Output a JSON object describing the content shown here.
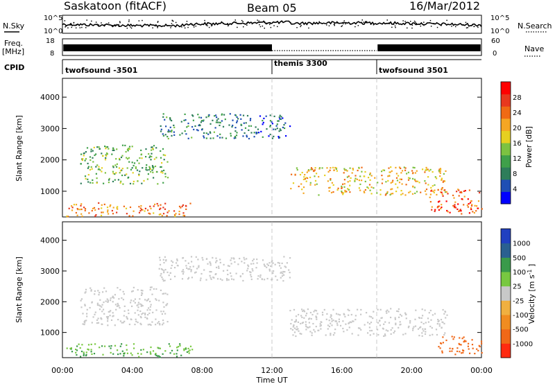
{
  "header": {
    "station": "Saskatoon (fitACF)",
    "beam": "Beam 05",
    "date": "16/Mar/2012"
  },
  "time_axis": {
    "label": "Time UT",
    "ticks": [
      "00:00",
      "04:00",
      "08:00",
      "12:00",
      "16:00",
      "20:00",
      "00:00"
    ]
  },
  "nsky_panel": {
    "left_label": "N.Sky",
    "right_label": "N.Search",
    "left_ticks": [
      "10^5",
      "10^0"
    ],
    "right_ticks": [
      "10^5",
      "10^0"
    ]
  },
  "freq_panel": {
    "left_label_1": "Freq.",
    "left_label_2": "[MHz]",
    "right_label": "Nave",
    "left_ticks": [
      "18",
      "8"
    ],
    "right_ticks": [
      "60",
      "0"
    ]
  },
  "cpid_panel": {
    "label": "CPID",
    "segments": [
      "twofsound -3501",
      "themis 3300",
      "twofsound 3501"
    ]
  },
  "colors": {
    "power": [
      "#0000ff",
      "#1f4fb4",
      "#2e7d5a",
      "#3fa04a",
      "#7cc241",
      "#e6d020",
      "#f5a623",
      "#f06a14",
      "#e8381e",
      "#ff0000"
    ],
    "velocity": [
      "#2040c0",
      "#2a6090",
      "#3a9a4a",
      "#78c840",
      "#c8c8c8",
      "#f0b040",
      "#f08c20",
      "#f06818",
      "#ff2a10"
    ]
  },
  "chart_data": [
    {
      "type": "heatmap",
      "ylabel": "Slant Range [km]",
      "xlabel": "",
      "y_ticks": [
        "1000",
        "2000",
        "3000",
        "4000"
      ],
      "x_range_hours": [
        0,
        24
      ],
      "y_range_km": [
        180,
        4600
      ],
      "colorbar": {
        "label": "Power [dB]",
        "ticks": [
          "4",
          "8",
          "12",
          "16",
          "20",
          "24",
          "28"
        ],
        "range": [
          0,
          30
        ]
      },
      "scatter_regions": [
        {
          "t_start": 0.2,
          "t_end": 7.5,
          "r_low": 220,
          "r_high": 650,
          "value": 22
        },
        {
          "t_start": 1.0,
          "t_end": 6.0,
          "r_low": 1250,
          "r_high": 2500,
          "value": 12
        },
        {
          "t_start": 5.5,
          "t_end": 10.5,
          "r_low": 2700,
          "r_high": 3500,
          "value": 8
        },
        {
          "t_start": 10.5,
          "t_end": 13.0,
          "r_low": 2700,
          "r_high": 3450,
          "value": 6
        },
        {
          "t_start": 13.0,
          "t_end": 22.0,
          "r_low": 900,
          "r_high": 1800,
          "value": 18
        },
        {
          "t_start": 21.0,
          "t_end": 24.0,
          "r_low": 300,
          "r_high": 1100,
          "value": 24
        }
      ]
    },
    {
      "type": "heatmap",
      "ylabel": "Slant Range [km]",
      "xlabel": "Time UT",
      "y_ticks": [
        "1000",
        "2000",
        "3000",
        "4000"
      ],
      "x_range_hours": [
        0,
        24
      ],
      "y_range_km": [
        180,
        4600
      ],
      "colorbar": {
        "label": "Velocity [m s^-1]",
        "ticks": [
          "1000",
          "500",
          "100",
          "25",
          "-25",
          "-100",
          "-500",
          "-1000"
        ],
        "range": [
          -1000,
          1000
        ]
      },
      "scatter_regions": [
        {
          "t_start": 0.2,
          "t_end": 7.5,
          "r_low": 220,
          "r_high": 650,
          "value": 60
        },
        {
          "t_start": 1.0,
          "t_end": 6.0,
          "r_low": 1250,
          "r_high": 2500,
          "value": 0
        },
        {
          "t_start": 5.5,
          "t_end": 13.0,
          "r_low": 2700,
          "r_high": 3500,
          "value": 0
        },
        {
          "t_start": 13.0,
          "t_end": 22.0,
          "r_low": 900,
          "r_high": 1800,
          "value": 0
        },
        {
          "t_start": 21.5,
          "t_end": 24.0,
          "r_low": 300,
          "r_high": 900,
          "value": -200
        }
      ]
    }
  ]
}
